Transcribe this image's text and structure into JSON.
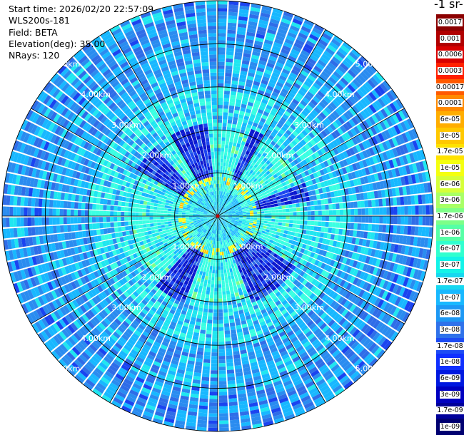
{
  "info": {
    "start_time": "Start time: 2026/02/20 22:57:09",
    "instrument": "WLS200s-181",
    "field": "Field: BETA",
    "elevation": "Elevation(deg): 35.00",
    "nrays": "NRays: 120"
  },
  "colorbar": {
    "title": "-1 sr-",
    "labels": [
      "0.0017",
      "0.001",
      "0.0006",
      "0.0003",
      "0.00017",
      "0.0001",
      "6e-05",
      "3e-05",
      "1.7e-05",
      "1e-05",
      "6e-06",
      "3e-06",
      "1.7e-06",
      "1e-06",
      "6e-07",
      "3e-07",
      "1.7e-07",
      "1e-07",
      "6e-08",
      "3e-08",
      "1.7e-08",
      "1e-08",
      "6e-09",
      "3e-09",
      "1.7e-09",
      "1e-09"
    ],
    "colors": [
      "#8b0000",
      "#b00000",
      "#d80000",
      "#ff2000",
      "#ff5a00",
      "#ff8a00",
      "#ffad00",
      "#ffc800",
      "#ffe200",
      "#f4ff10",
      "#d6ff38",
      "#a8ff66",
      "#7dff88",
      "#56ffa6",
      "#30ffcf",
      "#12f3e8",
      "#16d8f0",
      "#18b8ff",
      "#1d98f4",
      "#2f72ea",
      "#1d4cf4",
      "#1030ff",
      "#0018e0",
      "#0000c0",
      "#00009a",
      "#000070"
    ]
  },
  "chart_data": {
    "type": "heatmap",
    "projection": "polar PPI",
    "field": "BETA",
    "elevation_deg": 35.0,
    "n_rays": 120,
    "range_rings_km": [
      1,
      2,
      3,
      4,
      5
    ],
    "ring_labels": [
      "1.00km",
      "2.00km",
      "3.00km",
      "4.00km",
      "5.00km"
    ],
    "max_range_km": 5.0,
    "radial_spokes_deg": [
      0,
      30,
      60,
      90,
      120,
      150,
      180,
      210,
      240,
      270,
      300,
      330
    ],
    "low_backscatter_sectors_deg": [
      [
        -26,
        -5
      ],
      [
        20,
        30
      ],
      [
        68,
        80
      ],
      [
        122,
        160
      ],
      [
        200,
        222
      ],
      [
        300,
        318
      ],
      [
        330,
        336
      ]
    ],
    "value_range": [
      1e-09,
      0.0017
    ]
  }
}
